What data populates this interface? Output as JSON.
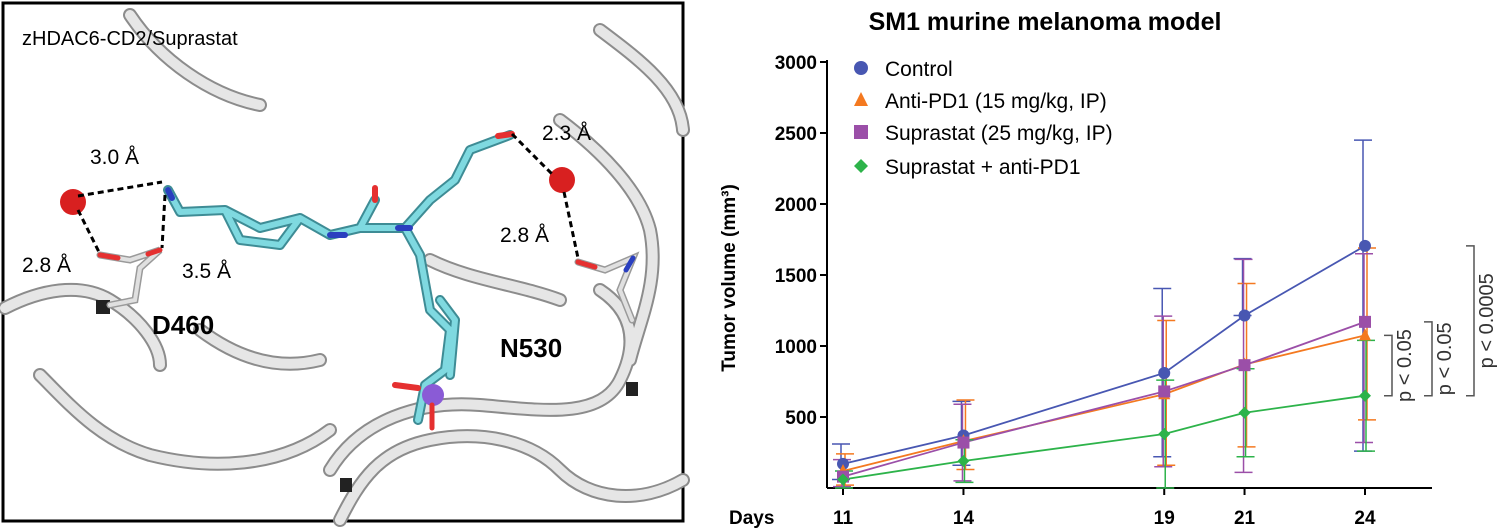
{
  "structure_panel": {
    "title": "zHDAC6-CD2/Suprastat",
    "distances": [
      "3.0 Å",
      "2.8 Å",
      "3.5 Å",
      "2.3 Å",
      "2.8 Å"
    ],
    "residues": [
      "D460",
      "N530"
    ]
  },
  "chart_data": {
    "type": "line",
    "title": "SM1 murine melanoma model",
    "xlabel": "Days",
    "ylabel": "Tumor volume (mm³)",
    "ylim": [
      0,
      3000
    ],
    "yticks": [
      500,
      1000,
      1500,
      2000,
      2500,
      3000
    ],
    "x": [
      11,
      14,
      19,
      21,
      24
    ],
    "legend_position": "top-left",
    "series": [
      {
        "name": "Control",
        "color": "#4857b2",
        "marker": "circle",
        "values": [
          170,
          370,
          810,
          1215,
          1705
        ],
        "err_low": [
          60,
          160,
          220,
          1215,
          260
        ],
        "err_high": [
          310,
          610,
          1405,
          1615,
          2450
        ]
      },
      {
        "name": "Anti-PD1 (15 mg/kg, IP)",
        "color": "#f47920",
        "marker": "triangle",
        "values": [
          120,
          330,
          660,
          870,
          1075
        ],
        "err_low": [
          20,
          130,
          160,
          290,
          480
        ],
        "err_high": [
          240,
          620,
          1180,
          1440,
          1690
        ]
      },
      {
        "name": "Suprastat (25 mg/kg, IP)",
        "color": "#9b4fa8",
        "marker": "square",
        "values": [
          80,
          320,
          680,
          865,
          1170
        ],
        "err_low": [
          10,
          50,
          150,
          110,
          320
        ],
        "err_high": [
          200,
          590,
          1210,
          1610,
          1650
        ]
      },
      {
        "name": "Suprastat + anti-PD1",
        "color": "#2db34a",
        "marker": "diamond",
        "values": [
          60,
          190,
          380,
          530,
          650
        ],
        "err_low": [
          0,
          40,
          0,
          220,
          260
        ],
        "err_high": [
          120,
          340,
          760,
          840,
          1040
        ]
      }
    ],
    "annotations": [
      "p < 0.05",
      "p < 0.05",
      "p < 0.0005"
    ]
  }
}
